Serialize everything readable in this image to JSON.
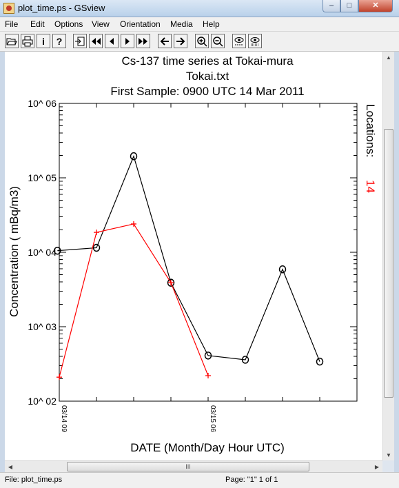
{
  "window": {
    "title": "plot_time.ps - GSview",
    "controls": {
      "minimize": "–",
      "maximize": "□",
      "close": "✕"
    }
  },
  "menu": [
    "File",
    "Edit",
    "Options",
    "View",
    "Orientation",
    "Media",
    "Help"
  ],
  "toolbar": {
    "buttons": [
      "open-icon",
      "print-icon",
      "info-icon",
      "help-icon",
      "goto-page-icon",
      "first-page-icon",
      "prev-page-icon",
      "next-page-icon",
      "last-page-icon",
      "back-icon",
      "forward-icon",
      "zoom-in-icon",
      "zoom-out-icon",
      "text-extract-icon",
      "magnify-icon"
    ],
    "labels": {
      "info": "i",
      "help": "?"
    }
  },
  "status": {
    "file": "File: plot_time.ps",
    "page": "Page: \"1\"  1 of 1"
  },
  "scrollbar": {
    "grip": "III"
  },
  "chart_data": {
    "type": "line",
    "title": "Cs-137 time series at Tokai-mura",
    "subtitle": "Tokai.txt",
    "subtitle2": "First Sample: 0900 UTC 14 Mar 2011",
    "xlabel": "DATE (Month/Day Hour UTC)",
    "ylabel": "Concentration ( mBq/m3)",
    "yscale": "log",
    "ylim": [
      100,
      1000000
    ],
    "xlim": [
      0,
      8
    ],
    "x_ticks": [
      {
        "x": 0,
        "label": "03/14 09"
      },
      {
        "x": 4,
        "label": "03/15 06"
      }
    ],
    "y_ticks": [
      {
        "value": 100,
        "label": "10^ 02"
      },
      {
        "value": 1000,
        "label": "10^ 03"
      },
      {
        "value": 10000,
        "label": "10^ 04"
      },
      {
        "value": 100000,
        "label": "10^ 05"
      },
      {
        "value": 1000000,
        "label": "10^ 06"
      }
    ],
    "locations_label": "Locations:",
    "locations_value": "14",
    "series": [
      {
        "color": "#000000",
        "marker": "circle",
        "x": [
          -0.05,
          1,
          2,
          3,
          4,
          5,
          6,
          7
        ],
        "values": [
          10500,
          11500,
          195000,
          3900,
          410,
          360,
          5900,
          340
        ]
      },
      {
        "color": "#ff0000",
        "marker": "plus",
        "x": [
          0,
          1,
          2,
          3,
          4
        ],
        "values": [
          210,
          18500,
          24000,
          3900,
          220
        ]
      }
    ]
  }
}
